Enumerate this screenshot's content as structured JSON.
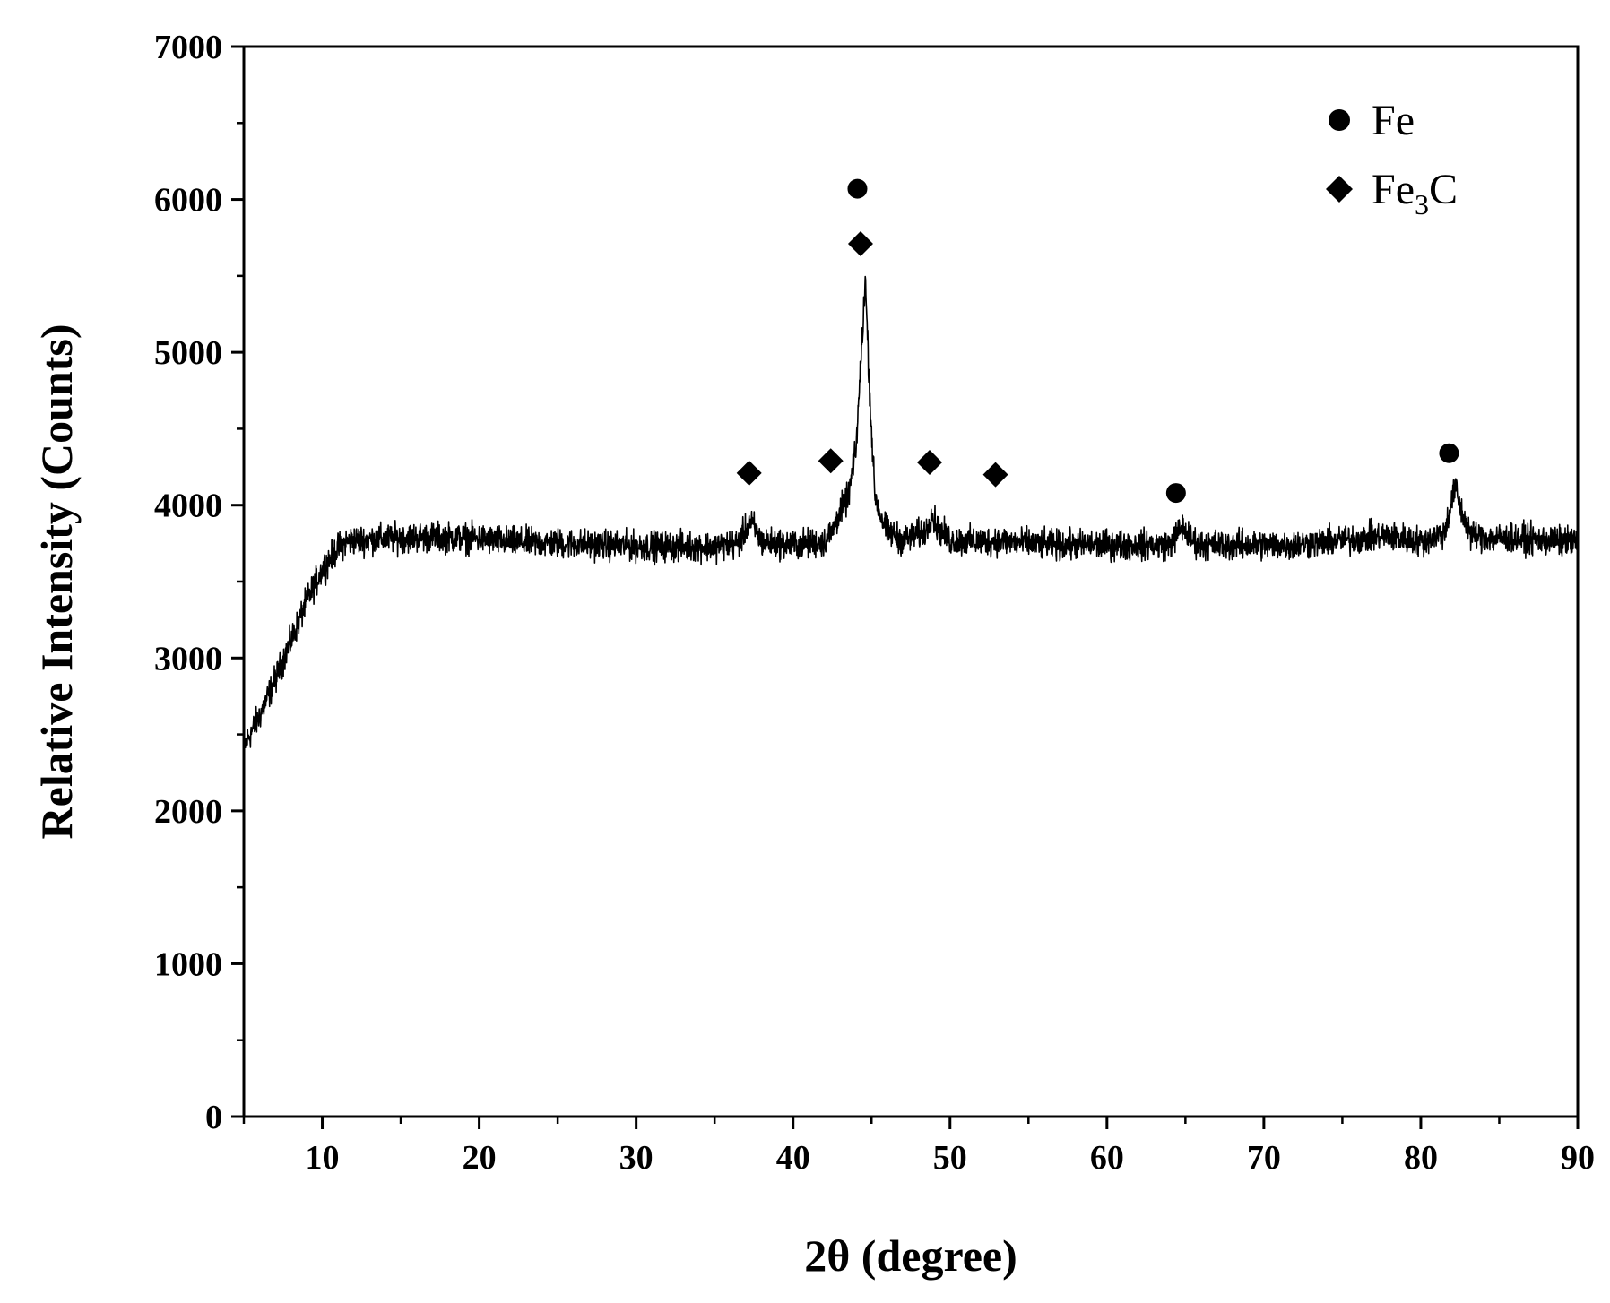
{
  "chart_data": {
    "type": "line",
    "title": "",
    "xlabel": "2θ (degree)",
    "ylabel": "Relative Intensity (Counts)",
    "xlim": [
      5,
      90
    ],
    "ylim": [
      0,
      7000
    ],
    "x_ticks": [
      10,
      20,
      30,
      40,
      50,
      60,
      70,
      80,
      90
    ],
    "x_tick_labels": [
      "10",
      "20",
      "30",
      "40",
      "50",
      "60",
      "70",
      "80",
      "90"
    ],
    "y_ticks": [
      0,
      1000,
      2000,
      3000,
      4000,
      5000,
      6000,
      7000
    ],
    "y_tick_labels": [
      "0",
      "1000",
      "2000",
      "3000",
      "4000",
      "5000",
      "6000",
      "7000"
    ],
    "grid": false,
    "legend_position": "top-right",
    "legend": [
      {
        "marker": "circle",
        "label": "Fe",
        "label_main": "Fe",
        "label_sub": ""
      },
      {
        "marker": "diamond",
        "label": "Fe3C",
        "label_main": "Fe",
        "label_sub": "3",
        "label_tail": "C"
      }
    ],
    "series": [
      {
        "color": "#000000",
        "x": [
          5,
          6,
          7,
          8,
          9,
          10,
          11,
          11.5,
          12,
          14,
          16,
          18,
          20,
          22,
          25,
          28,
          30,
          33,
          35,
          36.5,
          37.2,
          37.5,
          38,
          40,
          42,
          42.5,
          43,
          43.5,
          44,
          44.3,
          44.6,
          44.9,
          45.2,
          45.6,
          46,
          47,
          48.5,
          48.8,
          49.2,
          50,
          52,
          53,
          54,
          56,
          58,
          60,
          62,
          64,
          64.8,
          65.3,
          66,
          68,
          70,
          72,
          74,
          76,
          78,
          80,
          81.5,
          82.2,
          82.6,
          83.2,
          84,
          86,
          88,
          90
        ],
        "y": [
          2420,
          2620,
          2860,
          3110,
          3370,
          3580,
          3720,
          3760,
          3770,
          3780,
          3790,
          3790,
          3780,
          3760,
          3750,
          3740,
          3730,
          3730,
          3730,
          3750,
          3880,
          3860,
          3760,
          3740,
          3760,
          3830,
          3960,
          4050,
          4350,
          4900,
          5480,
          4700,
          4080,
          3920,
          3830,
          3770,
          3830,
          3950,
          3850,
          3770,
          3760,
          3770,
          3760,
          3740,
          3740,
          3740,
          3740,
          3740,
          3860,
          3780,
          3740,
          3740,
          3740,
          3740,
          3760,
          3780,
          3800,
          3760,
          3820,
          4120,
          3950,
          3810,
          3790,
          3780,
          3770,
          3760
        ]
      }
    ],
    "peak_markers": [
      {
        "phase": "Fe3C",
        "marker": "diamond",
        "x": 37.2,
        "y": 4210
      },
      {
        "phase": "Fe3C",
        "marker": "diamond",
        "x": 42.4,
        "y": 4290
      },
      {
        "phase": "Fe3C",
        "marker": "diamond",
        "x": 44.3,
        "y": 5710
      },
      {
        "phase": "Fe",
        "marker": "circle",
        "x": 44.1,
        "y": 6070
      },
      {
        "phase": "Fe3C",
        "marker": "diamond",
        "x": 48.7,
        "y": 4280
      },
      {
        "phase": "Fe3C",
        "marker": "diamond",
        "x": 52.9,
        "y": 4200
      },
      {
        "phase": "Fe",
        "marker": "circle",
        "x": 64.4,
        "y": 4080
      },
      {
        "phase": "Fe",
        "marker": "circle",
        "x": 81.8,
        "y": 4340
      }
    ]
  }
}
